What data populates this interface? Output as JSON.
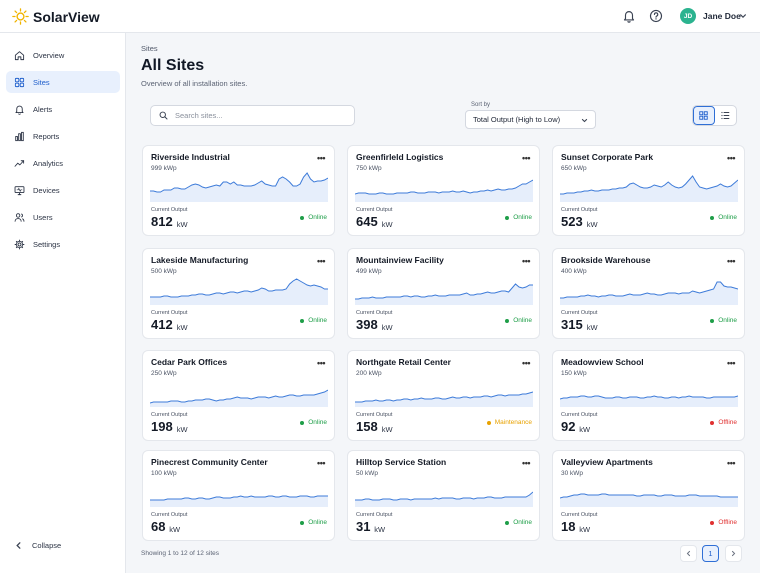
{
  "app": {
    "name": "SolarView"
  },
  "user": {
    "initials": "JD",
    "name": "Jane Doe"
  },
  "nav": {
    "items": [
      {
        "label": "Overview",
        "icon": "home-icon"
      },
      {
        "label": "Sites",
        "icon": "grid-icon"
      },
      {
        "label": "Alerts",
        "icon": "bell-icon"
      },
      {
        "label": "Reports",
        "icon": "bar-chart-icon"
      },
      {
        "label": "Analytics",
        "icon": "trend-icon"
      },
      {
        "label": "Devices",
        "icon": "monitor-icon"
      },
      {
        "label": "Users",
        "icon": "users-icon"
      },
      {
        "label": "Settings",
        "icon": "gear-icon"
      }
    ],
    "active": "Sites",
    "collapse_label": "Collapse"
  },
  "page": {
    "breadcrumb": "Sites",
    "title": "All Sites",
    "subtitle": "Overview of all installation sites."
  },
  "toolbar": {
    "search_placeholder": "Search sites...",
    "sort_label": "Sort by",
    "sort_value": "Total Output (High to Low)",
    "view_mode": "grid"
  },
  "output_label": "Current Output",
  "unit": "kW",
  "colors": {
    "accent": "#2f6fd6",
    "online": "#1e9e48",
    "maintenance": "#e8a200",
    "offline": "#e03131",
    "spark_line": "#3d7bd9",
    "spark_fill": "#e6eefb"
  },
  "sites": [
    {
      "name": "Riverside Industrial",
      "capacity": "999 kWp",
      "output": "812",
      "status": "Online",
      "spark": [
        11,
        11,
        10,
        10,
        12,
        12,
        12,
        14,
        14,
        13,
        13,
        15,
        17,
        18,
        17,
        15,
        14,
        15,
        16,
        17,
        16,
        20,
        20,
        18,
        20,
        17,
        17,
        16,
        16,
        16,
        17,
        19,
        21,
        18,
        17,
        16,
        16,
        23,
        25,
        23,
        20,
        16,
        16,
        18,
        25,
        29,
        23,
        20,
        21,
        21,
        22,
        24
      ]
    },
    {
      "name": "Greenfirleld Logistics",
      "capacity": "750 kWp",
      "output": "645",
      "status": "Online",
      "spark": [
        8,
        9,
        9,
        9,
        8,
        8,
        8,
        9,
        9,
        8,
        8,
        8,
        9,
        9,
        9,
        9,
        10,
        10,
        9,
        9,
        9,
        10,
        10,
        10,
        9,
        10,
        10,
        10,
        11,
        10,
        10,
        11,
        10,
        9,
        10,
        10,
        11,
        11,
        12,
        11,
        12,
        13,
        12,
        12,
        13,
        13,
        14,
        16,
        18,
        18,
        20,
        22
      ]
    },
    {
      "name": "Sunset Corporate Park",
      "capacity": "650 kWp",
      "output": "523",
      "status": "Online",
      "spark": [
        8,
        8,
        9,
        9,
        9,
        10,
        10,
        11,
        11,
        12,
        11,
        11,
        12,
        12,
        12,
        13,
        13,
        14,
        14,
        15,
        18,
        19,
        17,
        15,
        14,
        14,
        15,
        17,
        16,
        15,
        17,
        20,
        17,
        15,
        14,
        15,
        18,
        22,
        26,
        20,
        15,
        14,
        13,
        14,
        15,
        16,
        18,
        16,
        15,
        16,
        19,
        22
      ]
    },
    {
      "name": "Lakeside Manufacturing",
      "capacity": "500 kWp",
      "output": "412",
      "status": "Online",
      "spark": [
        8,
        8,
        8,
        8,
        9,
        9,
        8,
        8,
        8,
        9,
        9,
        9,
        10,
        10,
        11,
        11,
        10,
        10,
        11,
        12,
        12,
        11,
        12,
        13,
        13,
        12,
        13,
        14,
        14,
        13,
        14,
        15,
        17,
        16,
        14,
        14,
        15,
        15,
        15,
        16,
        21,
        24,
        26,
        24,
        22,
        20,
        19,
        20,
        19,
        18,
        16,
        16
      ]
    },
    {
      "name": "Mountainview Facility",
      "capacity": "499 kWp",
      "output": "398",
      "status": "Online",
      "spark": [
        6,
        6,
        7,
        7,
        7,
        8,
        7,
        7,
        7,
        8,
        8,
        8,
        8,
        8,
        9,
        9,
        8,
        9,
        9,
        8,
        8,
        9,
        9,
        10,
        9,
        9,
        9,
        10,
        10,
        10,
        10,
        11,
        12,
        10,
        10,
        11,
        11,
        12,
        13,
        12,
        12,
        13,
        14,
        14,
        13,
        17,
        21,
        18,
        17,
        18,
        20,
        20
      ]
    },
    {
      "name": "Brookside Warehouse",
      "capacity": "400 kWp",
      "output": "315",
      "status": "Online",
      "spark": [
        7,
        7,
        8,
        8,
        8,
        8,
        9,
        9,
        10,
        9,
        9,
        8,
        9,
        9,
        10,
        10,
        9,
        9,
        9,
        10,
        11,
        10,
        10,
        10,
        11,
        12,
        11,
        11,
        10,
        10,
        11,
        12,
        12,
        12,
        11,
        12,
        12,
        12,
        14,
        13,
        12,
        13,
        14,
        15,
        16,
        23,
        23,
        19,
        18,
        18,
        17,
        16
      ]
    },
    {
      "name": "Cedar Park Offices",
      "capacity": "250 kWp",
      "output": "198",
      "status": "Online",
      "spark": [
        4,
        5,
        5,
        5,
        5,
        5,
        6,
        6,
        6,
        5,
        5,
        6,
        6,
        7,
        7,
        7,
        8,
        8,
        7,
        6,
        7,
        7,
        8,
        8,
        9,
        10,
        9,
        9,
        9,
        8,
        9,
        10,
        10,
        10,
        9,
        10,
        11,
        10,
        10,
        11,
        12,
        12,
        11,
        11,
        12,
        12,
        12,
        12,
        13,
        14,
        15,
        17
      ]
    },
    {
      "name": "Northgate Retail Center",
      "capacity": "200 kWp",
      "output": "158",
      "status": "Maintenance",
      "spark": [
        5,
        5,
        5,
        6,
        6,
        6,
        7,
        6,
        6,
        7,
        7,
        6,
        7,
        7,
        8,
        8,
        7,
        8,
        8,
        9,
        8,
        8,
        8,
        9,
        9,
        8,
        8,
        9,
        10,
        9,
        9,
        10,
        10,
        9,
        10,
        10,
        10,
        11,
        11,
        10,
        11,
        12,
        12,
        11,
        12,
        12,
        12,
        12,
        13,
        13,
        14,
        15
      ]
    },
    {
      "name": "Meadowview School",
      "capacity": "150 kWp",
      "output": "92",
      "status": "Offline",
      "spark": [
        8,
        9,
        9,
        10,
        10,
        10,
        11,
        11,
        10,
        10,
        11,
        11,
        10,
        9,
        9,
        9,
        10,
        10,
        9,
        9,
        10,
        10,
        10,
        9,
        9,
        10,
        10,
        11,
        10,
        10,
        9,
        9,
        10,
        10,
        9,
        10,
        10,
        11,
        10,
        10,
        10,
        10,
        9,
        9,
        10,
        10,
        10,
        10,
        10,
        10,
        10,
        11
      ]
    },
    {
      "name": "Pinecrest Community Center",
      "capacity": "100 kWp",
      "output": "68",
      "status": "Online",
      "spark": [
        7,
        7,
        7,
        7,
        7,
        8,
        8,
        8,
        8,
        8,
        9,
        9,
        8,
        8,
        9,
        9,
        8,
        8,
        9,
        10,
        10,
        9,
        9,
        9,
        10,
        10,
        11,
        10,
        10,
        11,
        10,
        10,
        10,
        10,
        11,
        11,
        10,
        10,
        11,
        11,
        10,
        10,
        10,
        11,
        11,
        11,
        10,
        10,
        11,
        11,
        11,
        11
      ]
    },
    {
      "name": "Hilltop Service Station",
      "capacity": "50 kWp",
      "output": "31",
      "status": "Online",
      "spark": [
        7,
        7,
        7,
        8,
        8,
        7,
        7,
        7,
        8,
        8,
        8,
        7,
        7,
        8,
        8,
        8,
        7,
        8,
        8,
        8,
        8,
        8,
        8,
        9,
        8,
        9,
        9,
        9,
        9,
        8,
        8,
        9,
        9,
        9,
        8,
        9,
        9,
        9,
        10,
        10,
        9,
        9,
        9,
        10,
        10,
        10,
        10,
        10,
        10,
        10,
        12,
        15
      ]
    },
    {
      "name": "Valleyview Apartments",
      "capacity": "30 kWp",
      "output": "18",
      "status": "Offline",
      "spark": [
        9,
        10,
        10,
        11,
        12,
        12,
        13,
        13,
        12,
        12,
        12,
        12,
        13,
        13,
        12,
        12,
        12,
        12,
        12,
        12,
        12,
        12,
        11,
        11,
        12,
        12,
        12,
        12,
        11,
        11,
        12,
        12,
        12,
        11,
        11,
        11,
        11,
        12,
        12,
        12,
        11,
        11,
        11,
        11,
        11,
        11,
        10,
        10,
        10,
        10,
        10,
        10
      ]
    }
  ],
  "footer": {
    "showing_text": "Showing 1 to 12 of 12 sites",
    "current_page": "1"
  }
}
